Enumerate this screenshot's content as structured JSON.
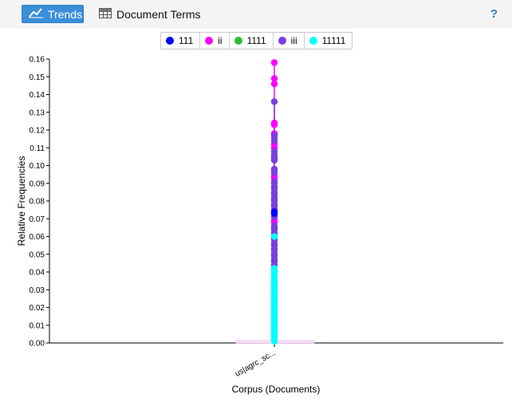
{
  "toolbar": {
    "tabs": [
      {
        "label": "Trends",
        "icon": "line-chart-icon"
      },
      {
        "label": "Document Terms",
        "icon": "table-icon"
      }
    ],
    "help_label": "?"
  },
  "legend": [
    {
      "label": "111",
      "color": "#0000ff"
    },
    {
      "label": "ii",
      "color": "#ff00ff"
    },
    {
      "label": "1111",
      "color": "#33bb33"
    },
    {
      "label": "iii",
      "color": "#7a3ee0"
    },
    {
      "label": "11111",
      "color": "#00ffff"
    }
  ],
  "chart_data": {
    "type": "scatter",
    "categories": [
      "us|agrc_sc..."
    ],
    "xlabel": "Corpus (Documents)",
    "ylabel": "Relative Frequencies",
    "ylim": [
      0,
      0.16
    ],
    "yticks": [
      "0.00",
      "0.01",
      "0.02",
      "0.03",
      "0.04",
      "0.05",
      "0.06",
      "0.07",
      "0.08",
      "0.09",
      "0.10",
      "0.11",
      "0.12",
      "0.13",
      "0.14",
      "0.15",
      "0.16"
    ],
    "grid": false,
    "legend_position": "top",
    "series": [
      {
        "name": "ii",
        "color": "#ff00ff",
        "values": [
          0.158,
          0.149,
          0.146,
          0.124,
          0.123,
          0.118,
          0.112,
          0.11,
          0.094,
          0.093,
          0.069,
          0.068
        ]
      },
      {
        "name": "iii",
        "color": "#7a3ee0",
        "values": [
          0.136,
          0.117,
          0.116,
          0.114,
          0.108,
          0.106,
          0.105,
          0.104,
          0.103,
          0.098,
          0.097,
          0.096,
          0.091,
          0.09,
          0.088,
          0.087,
          0.085,
          0.084,
          0.082,
          0.081,
          0.08,
          0.078,
          0.077,
          0.075,
          0.072,
          0.071,
          0.066,
          0.065,
          0.064,
          0.062,
          0.059,
          0.058,
          0.056,
          0.055,
          0.053,
          0.052,
          0.05,
          0.049,
          0.047,
          0.046,
          0.044
        ]
      },
      {
        "name": "111",
        "color": "#0000ff",
        "values": [
          0.074,
          0.073
        ]
      },
      {
        "name": "1111",
        "color": "#33bb33",
        "values": [
          0.06
        ]
      },
      {
        "name": "11111",
        "color": "#00ffff",
        "values": [
          0.06,
          0.042,
          0.041,
          0.04,
          0.039,
          0.037,
          0.036,
          0.035,
          0.034,
          0.033,
          0.032,
          0.031,
          0.03,
          0.029,
          0.028,
          0.027,
          0.026,
          0.025,
          0.024,
          0.023,
          0.022,
          0.021,
          0.02,
          0.019,
          0.018,
          0.017,
          0.016,
          0.015,
          0.014,
          0.013,
          0.012,
          0.011,
          0.01,
          0.009,
          0.008,
          0.007,
          0.006,
          0.005,
          0.004,
          0.003,
          0.002,
          0.001
        ]
      }
    ]
  }
}
